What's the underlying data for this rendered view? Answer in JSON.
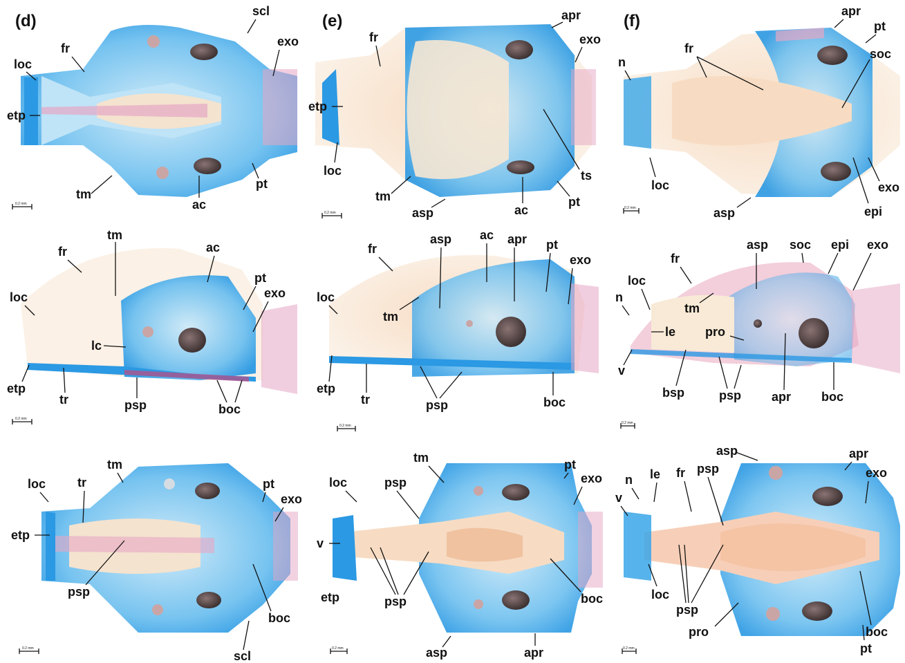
{
  "panels": {
    "d": "(d)",
    "e": "(e)",
    "f": "(f)"
  },
  "scale_bar": "0.2 mm",
  "labels": {
    "d1": {
      "scl": "scl",
      "fr": "fr",
      "exo": "exo",
      "loc": "loc",
      "etp": "etp",
      "tm": "tm",
      "ac": "ac",
      "pt": "pt"
    },
    "e1": {
      "apr": "apr",
      "fr": "fr",
      "exo": "exo",
      "etp": "etp",
      "loc": "loc",
      "ts": "ts",
      "tm": "tm",
      "asp": "asp",
      "ac": "ac",
      "pt": "pt"
    },
    "f1": {
      "apr": "apr",
      "pt": "pt",
      "fr": "fr",
      "soc": "soc",
      "n": "n",
      "loc": "loc",
      "exo": "exo",
      "asp": "asp",
      "epi": "epi"
    },
    "d2": {
      "tm": "tm",
      "ac": "ac",
      "fr": "fr",
      "pt": "pt",
      "loc": "loc",
      "exo": "exo",
      "lc": "lc",
      "etp": "etp",
      "tr": "tr",
      "psp": "psp",
      "boc": "boc"
    },
    "e2": {
      "fr": "fr",
      "asp": "asp",
      "ac": "ac",
      "apr": "apr",
      "pt": "pt",
      "exo": "exo",
      "loc": "loc",
      "tm": "tm",
      "etp": "etp",
      "tr": "tr",
      "psp": "psp",
      "boc": "boc"
    },
    "f2": {
      "fr": "fr",
      "asp": "asp",
      "soc": "soc",
      "epi": "epi",
      "exo": "exo",
      "loc": "loc",
      "n": "n",
      "tm": "tm",
      "le": "le",
      "pro": "pro",
      "v": "v",
      "bsp": "bsp",
      "psp": "psp",
      "apr": "apr",
      "boc": "boc"
    },
    "d3": {
      "loc": "loc",
      "tr": "tr",
      "tm": "tm",
      "pt": "pt",
      "exo": "exo",
      "etp": "etp",
      "psp": "psp",
      "boc": "boc",
      "scl": "scl"
    },
    "e3": {
      "tm": "tm",
      "pt": "pt",
      "loc": "loc",
      "psp": "psp",
      "exo": "exo",
      "v": "v",
      "etp": "etp",
      "boc": "boc",
      "asp": "asp",
      "apr": "apr"
    },
    "f3": {
      "asp": "asp",
      "apr": "apr",
      "n": "n",
      "le": "le",
      "fr": "fr",
      "psp": "psp",
      "exo": "exo",
      "v": "v",
      "loc": "loc",
      "pro": "pro",
      "boc": "boc",
      "pt": "pt"
    }
  },
  "colors": {
    "cartilage": "#3aa6e8",
    "cartilage_light": "#bfe3f7",
    "bone": "#e6a6c4",
    "bone_dark": "#c2497f",
    "background_tissue": "#f5e4d0",
    "otolith": "#5a4a4a"
  }
}
